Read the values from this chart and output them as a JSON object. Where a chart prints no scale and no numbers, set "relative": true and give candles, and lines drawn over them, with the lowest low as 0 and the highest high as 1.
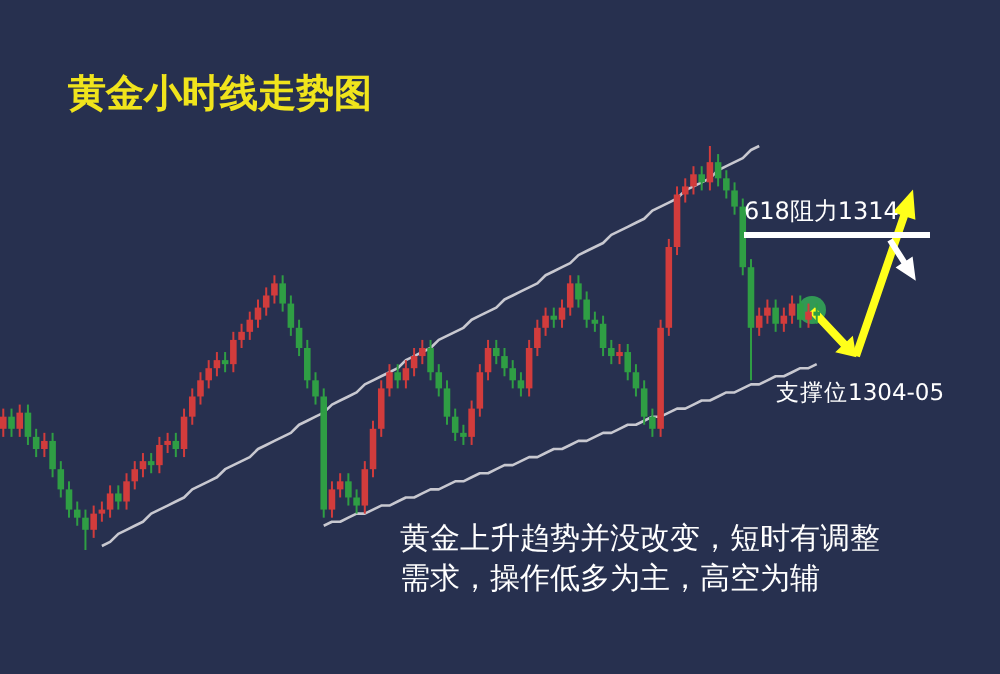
{
  "chart_data": {
    "type": "candlestick",
    "title": "黄金小时线走势图",
    "relative": true,
    "grid": false,
    "colors": [
      "#d23c3c",
      "#2f9e44",
      "#d23c3c",
      "#2f9e44",
      "#2f9e44",
      "#d23c3c",
      "#2f9e44",
      "#2f9e44",
      "#2f9e44",
      "#2f9e44",
      "#2f9e44",
      "#d23c3c",
      "#d23c3c",
      "#d23c3c",
      "#2f9e44",
      "#d23c3c",
      "#d23c3c",
      "#d23c3c",
      "#2f9e44",
      "#d23c3c",
      "#d23c3c",
      "#2f9e44",
      "#d23c3c",
      "#d23c3c",
      "#d23c3c",
      "#d23c3c",
      "#d23c3c",
      "#2f9e44",
      "#d23c3c",
      "#d23c3c",
      "#d23c3c",
      "#d23c3c",
      "#d23c3c",
      "#d23c3c",
      "#2f9e44",
      "#2f9e44",
      "#2f9e44",
      "#2f9e44",
      "#2f9e44",
      "#2f9e44",
      "#d23c3c",
      "#d23c3c",
      "#2f9e44",
      "#2f9e44",
      "#d23c3c",
      "#d23c3c",
      "#d23c3c",
      "#d23c3c",
      "#2f9e44",
      "#d23c3c",
      "#d23c3c",
      "#d23c3c",
      "#2f9e44",
      "#2f9e44",
      "#2f9e44",
      "#2f9e44",
      "#2f9e44",
      "#d23c3c",
      "#d23c3c",
      "#d23c3c",
      "#2f9e44",
      "#2f9e44",
      "#2f9e44",
      "#2f9e44",
      "#d23c3c",
      "#d23c3c",
      "#d23c3c",
      "#2f9e44",
      "#d23c3c",
      "#d23c3c",
      "#2f9e44",
      "#2f9e44",
      "#2f9e44",
      "#2f9e44",
      "#2f9e44",
      "#d23c3c",
      "#2f9e44",
      "#2f9e44",
      "#2f9e44",
      "#2f9e44",
      "#d23c3c",
      "#d23c3c",
      "#d23c3c",
      "#d23c3c",
      "#d23c3c",
      "#2f9e44",
      "#d23c3c",
      "#2f9e44",
      "#2f9e44",
      "#2f9e44",
      "#2f9e44",
      "#2f9e44",
      "#d23c3c",
      "#d23c3c",
      "#2f9e44",
      "#d23c3c",
      "#d23c3c",
      "#2f9e44",
      "#d23c3c",
      "#2f9e44"
    ],
    "ohlc": [
      [
        0.3,
        0.35,
        0.28,
        0.33
      ],
      [
        0.33,
        0.35,
        0.28,
        0.3
      ],
      [
        0.3,
        0.36,
        0.28,
        0.34
      ],
      [
        0.34,
        0.36,
        0.26,
        0.28
      ],
      [
        0.28,
        0.3,
        0.23,
        0.25
      ],
      [
        0.25,
        0.29,
        0.23,
        0.27
      ],
      [
        0.27,
        0.29,
        0.18,
        0.2
      ],
      [
        0.2,
        0.22,
        0.13,
        0.15
      ],
      [
        0.15,
        0.17,
        0.08,
        0.1
      ],
      [
        0.1,
        0.12,
        0.06,
        0.08
      ],
      [
        0.08,
        0.1,
        0,
        0.05
      ],
      [
        0.05,
        0.11,
        0.03,
        0.09
      ],
      [
        0.09,
        0.12,
        0.07,
        0.1
      ],
      [
        0.1,
        0.16,
        0.08,
        0.14
      ],
      [
        0.14,
        0.16,
        0.1,
        0.12
      ],
      [
        0.12,
        0.19,
        0.1,
        0.17
      ],
      [
        0.17,
        0.22,
        0.15,
        0.2
      ],
      [
        0.2,
        0.24,
        0.18,
        0.22
      ],
      [
        0.22,
        0.24,
        0.19,
        0.21
      ],
      [
        0.21,
        0.28,
        0.19,
        0.26
      ],
      [
        0.26,
        0.29,
        0.24,
        0.27
      ],
      [
        0.27,
        0.29,
        0.23,
        0.25
      ],
      [
        0.25,
        0.35,
        0.23,
        0.33
      ],
      [
        0.33,
        0.4,
        0.31,
        0.38
      ],
      [
        0.38,
        0.44,
        0.36,
        0.42
      ],
      [
        0.42,
        0.47,
        0.4,
        0.45
      ],
      [
        0.45,
        0.49,
        0.43,
        0.47
      ],
      [
        0.47,
        0.49,
        0.44,
        0.46
      ],
      [
        0.46,
        0.54,
        0.44,
        0.52
      ],
      [
        0.52,
        0.56,
        0.5,
        0.54
      ],
      [
        0.54,
        0.59,
        0.52,
        0.57
      ],
      [
        0.57,
        0.62,
        0.55,
        0.6
      ],
      [
        0.6,
        0.65,
        0.58,
        0.63
      ],
      [
        0.63,
        0.68,
        0.61,
        0.66
      ],
      [
        0.66,
        0.68,
        0.59,
        0.61
      ],
      [
        0.61,
        0.63,
        0.53,
        0.55
      ],
      [
        0.55,
        0.57,
        0.48,
        0.5
      ],
      [
        0.5,
        0.52,
        0.4,
        0.42
      ],
      [
        0.42,
        0.44,
        0.36,
        0.38
      ],
      [
        0.38,
        0.4,
        0.08,
        0.1
      ],
      [
        0.1,
        0.17,
        0.08,
        0.15
      ],
      [
        0.15,
        0.19,
        0.13,
        0.17
      ],
      [
        0.17,
        0.19,
        0.11,
        0.13
      ],
      [
        0.13,
        0.15,
        0.09,
        0.11
      ],
      [
        0.11,
        0.22,
        0.09,
        0.2
      ],
      [
        0.2,
        0.32,
        0.18,
        0.3
      ],
      [
        0.3,
        0.42,
        0.28,
        0.4
      ],
      [
        0.4,
        0.46,
        0.38,
        0.44
      ],
      [
        0.44,
        0.46,
        0.4,
        0.42
      ],
      [
        0.42,
        0.47,
        0.4,
        0.45
      ],
      [
        0.45,
        0.5,
        0.43,
        0.48
      ],
      [
        0.48,
        0.52,
        0.46,
        0.5
      ],
      [
        0.5,
        0.52,
        0.42,
        0.44
      ],
      [
        0.44,
        0.46,
        0.38,
        0.4
      ],
      [
        0.4,
        0.42,
        0.31,
        0.33
      ],
      [
        0.33,
        0.35,
        0.27,
        0.29
      ],
      [
        0.29,
        0.31,
        0.26,
        0.28
      ],
      [
        0.28,
        0.37,
        0.26,
        0.35
      ],
      [
        0.35,
        0.46,
        0.33,
        0.44
      ],
      [
        0.44,
        0.52,
        0.42,
        0.5
      ],
      [
        0.5,
        0.52,
        0.46,
        0.48
      ],
      [
        0.48,
        0.5,
        0.43,
        0.45
      ],
      [
        0.45,
        0.47,
        0.4,
        0.42
      ],
      [
        0.42,
        0.44,
        0.38,
        0.4
      ],
      [
        0.4,
        0.52,
        0.38,
        0.5
      ],
      [
        0.5,
        0.57,
        0.48,
        0.55
      ],
      [
        0.55,
        0.6,
        0.53,
        0.58
      ],
      [
        0.58,
        0.6,
        0.55,
        0.57
      ],
      [
        0.57,
        0.62,
        0.55,
        0.6
      ],
      [
        0.6,
        0.68,
        0.58,
        0.66
      ],
      [
        0.66,
        0.68,
        0.6,
        0.62
      ],
      [
        0.62,
        0.64,
        0.55,
        0.57
      ],
      [
        0.57,
        0.59,
        0.54,
        0.56
      ],
      [
        0.56,
        0.58,
        0.48,
        0.5
      ],
      [
        0.5,
        0.52,
        0.46,
        0.48
      ],
      [
        0.48,
        0.51,
        0.46,
        0.49
      ],
      [
        0.49,
        0.51,
        0.42,
        0.44
      ],
      [
        0.44,
        0.46,
        0.38,
        0.4
      ],
      [
        0.4,
        0.42,
        0.31,
        0.33
      ],
      [
        0.33,
        0.35,
        0.28,
        0.3
      ],
      [
        0.3,
        0.57,
        0.28,
        0.55
      ],
      [
        0.55,
        0.77,
        0.53,
        0.75
      ],
      [
        0.75,
        0.9,
        0.73,
        0.88
      ],
      [
        0.88,
        0.92,
        0.86,
        0.9
      ],
      [
        0.9,
        0.95,
        0.88,
        0.93
      ],
      [
        0.93,
        0.95,
        0.89,
        0.91
      ],
      [
        0.91,
        1,
        0.89,
        0.96
      ],
      [
        0.96,
        0.98,
        0.9,
        0.92
      ],
      [
        0.92,
        0.94,
        0.87,
        0.89
      ],
      [
        0.89,
        0.91,
        0.83,
        0.85
      ],
      [
        0.85,
        0.87,
        0.68,
        0.7
      ],
      [
        0.7,
        0.72,
        0.42,
        0.55
      ],
      [
        0.55,
        0.6,
        0.53,
        0.58
      ],
      [
        0.58,
        0.62,
        0.56,
        0.6
      ],
      [
        0.6,
        0.62,
        0.54,
        0.56
      ],
      [
        0.56,
        0.6,
        0.54,
        0.58
      ],
      [
        0.58,
        0.63,
        0.56,
        0.61
      ],
      [
        0.61,
        0.63,
        0.55,
        0.57
      ],
      [
        0.57,
        0.61,
        0.55,
        0.59
      ],
      [
        0.59,
        0.61,
        0.56,
        0.58
      ]
    ],
    "categories": [
      null,
      null,
      null,
      null,
      null,
      null,
      null,
      null,
      null,
      null,
      null,
      null,
      null,
      null,
      null,
      null,
      null,
      null,
      null,
      null,
      null,
      null,
      null,
      null,
      null,
      null,
      null,
      null,
      null,
      null,
      null,
      null,
      null,
      null,
      null,
      null,
      null,
      null,
      null,
      null,
      null,
      null,
      null,
      null,
      null,
      null,
      null,
      null,
      null,
      null,
      null,
      null,
      null,
      null,
      null,
      null,
      null,
      null,
      null,
      null,
      null,
      null,
      null,
      null,
      null,
      null,
      null,
      null,
      null,
      null,
      null,
      null,
      null,
      null,
      null,
      null,
      null,
      null,
      null,
      null,
      null,
      null,
      null,
      null,
      null,
      null,
      null,
      null,
      null,
      null,
      null,
      null,
      null,
      null,
      null,
      null,
      null,
      null,
      null,
      null
    ],
    "series": [
      {
        "type": "line",
        "color": "#c8c8d0",
        "values": [
          null,
          null,
          null,
          null,
          null,
          null,
          null,
          null,
          null,
          null,
          null,
          null,
          0.01,
          0.02,
          0.04,
          0.05,
          0.06,
          0.07,
          0.09,
          0.1,
          0.11,
          0.12,
          0.13,
          0.15,
          0.16,
          0.17,
          0.18,
          0.2,
          0.21,
          0.22,
          0.23,
          0.25,
          0.26,
          0.27,
          0.28,
          0.29,
          0.31,
          0.32,
          0.33,
          0.34,
          0.36,
          0.37,
          0.38,
          0.39,
          0.41,
          0.42,
          0.43,
          0.44,
          0.45,
          0.47,
          0.48,
          0.49,
          0.5,
          0.52,
          0.53,
          0.54,
          0.55,
          0.57,
          0.58,
          0.59,
          0.6,
          0.62,
          0.63,
          0.64,
          0.65,
          0.66,
          0.68,
          0.69,
          0.7,
          0.71,
          0.73,
          0.74,
          0.75,
          0.76,
          0.78,
          0.79,
          0.8,
          0.81,
          0.82,
          0.84,
          0.85,
          0.86,
          0.87,
          0.89,
          0.9,
          0.91,
          0.92,
          0.94,
          0.95,
          0.96,
          0.97,
          0.99,
          1,
          null,
          null,
          null,
          null,
          null,
          null,
          null
        ]
      },
      {
        "type": "line",
        "color": "#c8c8d0",
        "values": [
          null,
          null,
          null,
          null,
          null,
          null,
          null,
          null,
          null,
          null,
          null,
          null,
          null,
          null,
          null,
          null,
          null,
          null,
          null,
          null,
          null,
          null,
          null,
          null,
          null,
          null,
          null,
          null,
          null,
          null,
          null,
          null,
          null,
          null,
          null,
          null,
          null,
          null,
          null,
          0.06,
          0.07,
          0.07,
          0.08,
          0.09,
          0.09,
          0.1,
          0.11,
          0.11,
          0.12,
          0.13,
          0.13,
          0.14,
          0.15,
          0.15,
          0.16,
          0.17,
          0.17,
          0.18,
          0.19,
          0.19,
          0.2,
          0.21,
          0.21,
          0.22,
          0.23,
          0.23,
          0.24,
          0.25,
          0.25,
          0.26,
          0.27,
          0.27,
          0.28,
          0.29,
          0.29,
          0.3,
          0.31,
          0.31,
          0.32,
          0.33,
          0.33,
          0.34,
          0.35,
          0.35,
          0.36,
          0.37,
          0.37,
          0.38,
          0.39,
          0.39,
          0.4,
          0.41,
          0.41,
          0.42,
          0.43,
          0.43,
          0.44,
          0.45,
          0.45,
          0.46
        ]
      }
    ],
    "ref_lines": [
      {
        "axis": "y",
        "value": 0.78,
        "label": "618阻力1314",
        "color": "#ffffff"
      }
    ],
    "annotations": [
      "支撑位1304-05",
      "黄金上升趋势并没改变，短时有调整需求，操作低多为主，高空为辅"
    ]
  }
}
